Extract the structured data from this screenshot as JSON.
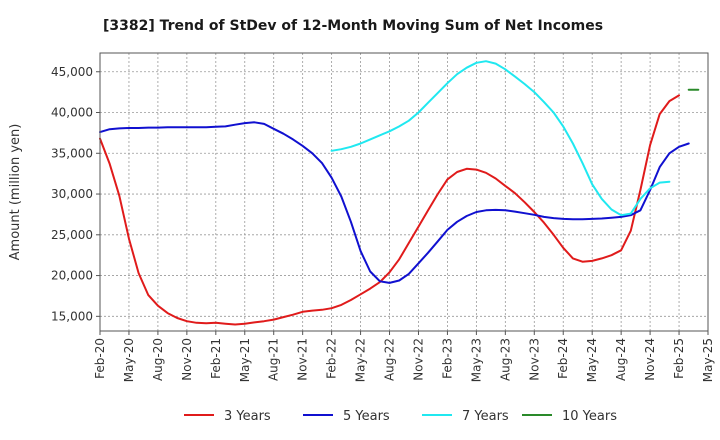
{
  "chart_data": {
    "type": "line",
    "title": "[3382]  Trend of StDev of 12-Month Moving Sum of Net Incomes",
    "xlabel": "",
    "ylabel": "Amount (million yen)",
    "ylim": [
      13200,
      47300
    ],
    "yticks": [
      15000,
      20000,
      25000,
      30000,
      35000,
      40000,
      45000
    ],
    "ytick_labels": [
      "15,000",
      "20,000",
      "25,000",
      "30,000",
      "35,000",
      "40,000",
      "45,000"
    ],
    "x_ticks": [
      "Feb-20",
      "May-20",
      "Aug-20",
      "Nov-20",
      "Feb-21",
      "May-21",
      "Aug-21",
      "Nov-21",
      "Feb-22",
      "May-22",
      "Aug-22",
      "Nov-22",
      "Feb-23",
      "May-23",
      "Aug-23",
      "Nov-23",
      "Feb-24",
      "May-24",
      "Aug-24",
      "Nov-24",
      "Feb-25",
      "May-25"
    ],
    "x_index_range": [
      0,
      63
    ],
    "grid": true,
    "legend_position": "bottom",
    "series": [
      {
        "name": "3 Years",
        "color": "#e01b1b",
        "start_index": 0,
        "values": [
          36800,
          33700,
          29800,
          24500,
          20300,
          17600,
          16300,
          15400,
          14800,
          14400,
          14200,
          14150,
          14200,
          14100,
          14000,
          14100,
          14250,
          14400,
          14600,
          14900,
          15200,
          15550,
          15700,
          15800,
          16000,
          16400,
          17000,
          17700,
          18400,
          19200,
          20400,
          22000,
          24000,
          26000,
          28000,
          30000,
          31800,
          32700,
          33100,
          33000,
          32600,
          31900,
          31000,
          30100,
          29000,
          27800,
          26500,
          25000,
          23400,
          22100,
          21700,
          21800,
          22100,
          22500,
          23100,
          25500,
          30500,
          36000,
          39800,
          41400,
          42100
        ]
      },
      {
        "name": "5 Years",
        "color": "#1010d0",
        "start_index": 0,
        "values": [
          37600,
          37950,
          38050,
          38100,
          38100,
          38150,
          38150,
          38200,
          38200,
          38200,
          38200,
          38200,
          38250,
          38300,
          38500,
          38700,
          38800,
          38600,
          38000,
          37400,
          36700,
          35900,
          35000,
          33800,
          32000,
          29700,
          26600,
          23000,
          20500,
          19300,
          19100,
          19400,
          20200,
          21500,
          22800,
          24200,
          25600,
          26600,
          27300,
          27800,
          28000,
          28050,
          28000,
          27850,
          27650,
          27450,
          27200,
          27050,
          26950,
          26900,
          26900,
          26950,
          27000,
          27100,
          27200,
          27400,
          28000,
          30500,
          33300,
          35000,
          35800,
          36200
        ]
      },
      {
        "name": "7 Years",
        "color": "#20e8f0",
        "start_index": 24,
        "values": [
          35300,
          35500,
          35800,
          36200,
          36700,
          37200,
          37700,
          38300,
          39000,
          40000,
          41200,
          42400,
          43600,
          44700,
          45500,
          46100,
          46300,
          46000,
          45300,
          44400,
          43500,
          42500,
          41300,
          40000,
          38300,
          36200,
          33800,
          31200,
          29400,
          28100,
          27400,
          27600,
          29400,
          30700,
          31400,
          31500
        ]
      },
      {
        "name": "10 Years",
        "color": "#2a8a2a",
        "start_index": 61,
        "values": [
          42800,
          42800
        ]
      }
    ]
  }
}
